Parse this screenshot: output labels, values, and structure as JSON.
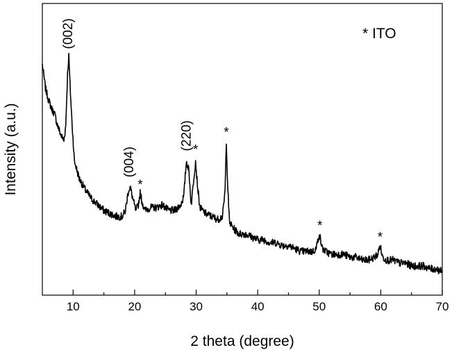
{
  "chart_data": {
    "type": "line",
    "title": "",
    "xlabel": "2 theta (degree)",
    "ylabel": "Intensity (a.u.)",
    "xlim": [
      5,
      70
    ],
    "ylim": [
      0,
      100
    ],
    "y_ticks_labeled": false,
    "x_ticks": [
      10,
      20,
      30,
      40,
      50,
      60,
      70
    ],
    "x_tick_labels": [
      "10",
      "20",
      "30",
      "40",
      "50",
      "60",
      "70"
    ],
    "grid": false,
    "legend": {
      "text": "* ITO",
      "position": "top-right"
    },
    "series": [
      {
        "color": "#000000",
        "x": [
          5,
          5.5,
          6,
          6.5,
          7,
          7.5,
          8,
          8.5,
          8.8,
          9.1,
          9.3,
          9.5,
          9.8,
          10.2,
          11,
          12,
          13,
          14,
          15,
          16,
          17,
          18,
          18.5,
          19,
          19.3,
          19.7,
          20.2,
          20.6,
          20.9,
          21.2,
          21.7,
          22.5,
          23.5,
          24.5,
          25.5,
          26.5,
          27.5,
          28,
          28.4,
          28.8,
          29.2,
          29.6,
          29.9,
          30.2,
          30.6,
          31.5,
          32.5,
          33.5,
          34.3,
          34.7,
          34.9,
          35.1,
          35.4,
          36,
          37,
          38,
          39,
          40,
          41,
          42,
          43,
          44,
          45,
          46,
          47,
          48,
          49,
          49.5,
          50,
          50.2,
          50.5,
          51,
          52,
          53,
          54,
          55,
          56,
          57,
          58,
          59,
          59.5,
          59.9,
          60.3,
          61,
          62,
          63,
          64,
          65,
          66,
          67,
          68,
          69,
          70
        ],
        "y": [
          79,
          71,
          67,
          64,
          62,
          58,
          55,
          53,
          58,
          76,
          82,
          72,
          60,
          46,
          40,
          36,
          33,
          31,
          29,
          28,
          27,
          27,
          29,
          36,
          37,
          33,
          29,
          31,
          35,
          32,
          29,
          30,
          30,
          31,
          29,
          29,
          31,
          34,
          46,
          43,
          31,
          40,
          46,
          38,
          30,
          28,
          27,
          26,
          27,
          36,
          53,
          39,
          25,
          23,
          21,
          21,
          20,
          19,
          19,
          18,
          18,
          17,
          17,
          16,
          15,
          15,
          15,
          16,
          21,
          19,
          16,
          15,
          14,
          14,
          14,
          13,
          13,
          12,
          12,
          13,
          14,
          17,
          13,
          12,
          12,
          11,
          11,
          10,
          10,
          10,
          9,
          9,
          8
        ]
      }
    ],
    "annotations": [
      {
        "text": "(002)",
        "x": 9.2,
        "y": 82,
        "rotated": true
      },
      {
        "text": "(004)",
        "x": 19.1,
        "y": 38,
        "rotated": true
      },
      {
        "text": "*",
        "x": 20.9,
        "y": 35
      },
      {
        "text": "(220)",
        "x": 28.4,
        "y": 47,
        "rotated": true
      },
      {
        "text": "*",
        "x": 29.9,
        "y": 47
      },
      {
        "text": "*",
        "x": 34.9,
        "y": 53
      },
      {
        "text": "*",
        "x": 50.1,
        "y": 21
      },
      {
        "text": "*",
        "x": 59.9,
        "y": 17
      }
    ]
  }
}
